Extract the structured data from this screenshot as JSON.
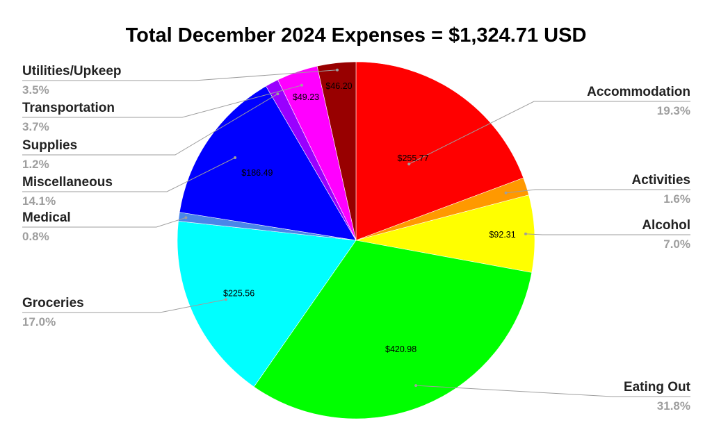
{
  "chart_data": {
    "type": "pie",
    "title": "Total December 2024 Expenses = $1,324.71 USD",
    "slices": [
      {
        "label": "Accommodation",
        "value": 255.77,
        "value_label": "$255.77",
        "percent_label": "19.3%",
        "color": "#ff0000"
      },
      {
        "label": "Activities",
        "value": 21.2,
        "value_label": "",
        "percent_label": "1.6%",
        "color": "#ff9900"
      },
      {
        "label": "Alcohol",
        "value": 92.31,
        "value_label": "$92.31",
        "percent_label": "7.0%",
        "color": "#ffff00"
      },
      {
        "label": "Eating Out",
        "value": 420.98,
        "value_label": "$420.98",
        "percent_label": "31.8%",
        "color": "#00ff00"
      },
      {
        "label": "Groceries",
        "value": 225.56,
        "value_label": "$225.56",
        "percent_label": "17.0%",
        "color": "#00ffff"
      },
      {
        "label": "Medical",
        "value": 10.6,
        "value_label": "",
        "percent_label": "0.8%",
        "color": "#4a86e8"
      },
      {
        "label": "Miscellaneous",
        "value": 186.49,
        "value_label": "$186.49",
        "percent_label": "14.1%",
        "color": "#0000ff"
      },
      {
        "label": "Supplies",
        "value": 15.9,
        "value_label": "",
        "percent_label": "1.2%",
        "color": "#9900ff"
      },
      {
        "label": "Transportation",
        "value": 49.23,
        "value_label": "$49.23",
        "percent_label": "3.7%",
        "color": "#ff00ff"
      },
      {
        "label": "Utilities/Upkeep",
        "value": 46.2,
        "value_label": "$46.20",
        "percent_label": "3.5%",
        "color": "#980000"
      }
    ],
    "legend": "none",
    "label_placement": "outside with leader lines"
  }
}
